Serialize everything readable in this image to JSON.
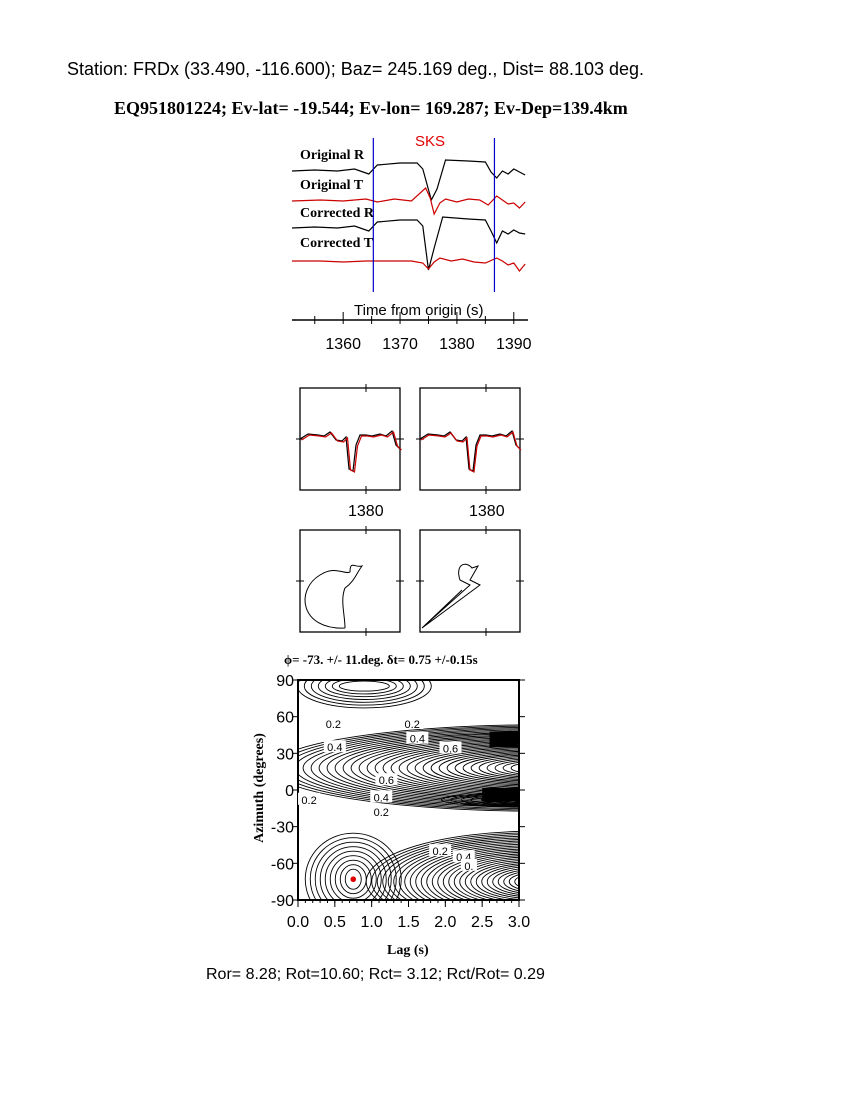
{
  "header": {
    "station_line": "Station: FRDx (33.490, -116.600); Baz=  245.169 deg., Dist=   88.103 deg.",
    "event_line": "EQ951801224; Ev-lat= -19.544; Ev-lon= 169.287; Ev-Dep=139.4km"
  },
  "footer": {
    "ratios": "Ror= 8.28; Rot=10.60; Rct= 3.12; Rct/Rot= 0.29"
  },
  "colors": {
    "radial": "#000000",
    "transverse": "#cc0000",
    "window": "#0000cc",
    "phase": "#e00000",
    "best_fit": "#e00000"
  },
  "chart_data": [
    {
      "type": "line",
      "phase_label": "SKS",
      "xlabel": "Time from origin (s)",
      "xticks": [
        1360,
        1370,
        1380,
        1390
      ],
      "xlim": [
        1351,
        1392.5
      ],
      "window": [
        1365.3,
        1386.6
      ],
      "series": [
        {
          "name": "Original R",
          "color": "#000000",
          "points": [
            [
              1351,
              0
            ],
            [
              1355,
              1
            ],
            [
              1359,
              0
            ],
            [
              1362,
              2
            ],
            [
              1364.5,
              -3
            ],
            [
              1366,
              6
            ],
            [
              1370,
              8
            ],
            [
              1373,
              8
            ],
            [
              1374,
              2
            ],
            [
              1375.5,
              -29
            ],
            [
              1376.5,
              -18
            ],
            [
              1378,
              11
            ],
            [
              1382,
              10
            ],
            [
              1385,
              9
            ],
            [
              1386,
              -1
            ],
            [
              1387,
              -7
            ],
            [
              1388,
              0
            ],
            [
              1389,
              -3
            ],
            [
              1390,
              2
            ],
            [
              1391,
              -1
            ],
            [
              1392,
              -4
            ]
          ]
        },
        {
          "name": "Original T",
          "color": "#cc0000",
          "points": [
            [
              1351,
              0
            ],
            [
              1356,
              1
            ],
            [
              1360,
              0
            ],
            [
              1364,
              2
            ],
            [
              1366,
              -1
            ],
            [
              1369,
              2
            ],
            [
              1372,
              0
            ],
            [
              1374.5,
              13
            ],
            [
              1375.3,
              3
            ],
            [
              1376,
              -13
            ],
            [
              1377,
              -2
            ],
            [
              1378,
              2
            ],
            [
              1380,
              -1
            ],
            [
              1382,
              2
            ],
            [
              1384,
              1
            ],
            [
              1385.5,
              -4
            ],
            [
              1387,
              5
            ],
            [
              1388,
              1
            ],
            [
              1389,
              -3
            ],
            [
              1390,
              -2
            ],
            [
              1391,
              -7
            ],
            [
              1392,
              -1
            ]
          ]
        },
        {
          "name": "Corrected R",
          "color": "#000000",
          "points": [
            [
              1351,
              0
            ],
            [
              1355,
              1
            ],
            [
              1359,
              0
            ],
            [
              1362,
              2
            ],
            [
              1364.5,
              -3
            ],
            [
              1366,
              6
            ],
            [
              1370,
              8
            ],
            [
              1373,
              8
            ],
            [
              1374,
              2
            ],
            [
              1375,
              -42
            ],
            [
              1376,
              -20
            ],
            [
              1377.5,
              11
            ],
            [
              1382,
              9
            ],
            [
              1385,
              8
            ],
            [
              1386,
              -3
            ],
            [
              1387,
              -15
            ],
            [
              1388,
              -3
            ],
            [
              1389,
              -6
            ],
            [
              1390,
              -2
            ],
            [
              1391,
              -5
            ],
            [
              1392,
              -6
            ]
          ]
        },
        {
          "name": "Corrected T",
          "color": "#cc0000",
          "points": [
            [
              1351,
              0
            ],
            [
              1356,
              0
            ],
            [
              1360,
              -1
            ],
            [
              1364,
              0
            ],
            [
              1368,
              0
            ],
            [
              1372,
              0
            ],
            [
              1374,
              -2
            ],
            [
              1375,
              -8
            ],
            [
              1376,
              -1
            ],
            [
              1377,
              3
            ],
            [
              1379,
              0
            ],
            [
              1381,
              2
            ],
            [
              1383,
              -1
            ],
            [
              1385,
              -2
            ],
            [
              1387,
              3
            ],
            [
              1388,
              0
            ],
            [
              1389,
              -4
            ],
            [
              1390,
              -2
            ],
            [
              1391,
              -10
            ],
            [
              1392,
              -3
            ]
          ]
        }
      ]
    },
    {
      "type": "line",
      "panel": "corrected-fast-slow-original",
      "xticks": [
        1380
      ]
    },
    {
      "type": "line",
      "panel": "corrected-fast-slow-corrected",
      "xticks": [
        1380
      ]
    },
    {
      "type": "scatter",
      "panel": "particle-motion-original"
    },
    {
      "type": "scatter",
      "panel": "particle-motion-corrected"
    },
    {
      "type": "heatmap",
      "title": "ϕ= -73. +/- 11.deg. δt= 0.75 +/-0.15s",
      "xlabel": "Lag (s)",
      "ylabel": "Azimuth (degrees)",
      "xlim": [
        0,
        3
      ],
      "ylim": [
        -90,
        90
      ],
      "xticks": [
        "0.0",
        "0.5",
        "1.0",
        "1.5",
        "2.0",
        "2.5",
        "3.0"
      ],
      "yticks": [
        "90",
        "60",
        "30",
        "0",
        "-30",
        "-60",
        "-90"
      ],
      "contour_labels": [
        {
          "text": "0.2",
          "x": 0.48,
          "y": 54
        },
        {
          "text": "0.2",
          "x": 1.55,
          "y": 54
        },
        {
          "text": "0.4",
          "x": 1.62,
          "y": 42
        },
        {
          "text": "0.6",
          "x": 2.07,
          "y": 34
        },
        {
          "text": "0.4",
          "x": 0.5,
          "y": 35
        },
        {
          "text": "0.6",
          "x": 1.2,
          "y": 8
        },
        {
          "text": "0.4",
          "x": 1.13,
          "y": -6
        },
        {
          "text": "0.2",
          "x": 1.13,
          "y": -18
        },
        {
          "text": "0.2",
          "x": 0.15,
          "y": -8
        },
        {
          "text": "0.2",
          "x": 1.93,
          "y": -50
        },
        {
          "text": "0.4",
          "x": 2.25,
          "y": -55
        },
        {
          "text": "0.",
          "x": 2.32,
          "y": -62
        }
      ],
      "best_fit": {
        "lag": 0.75,
        "azimuth": -73
      }
    }
  ]
}
